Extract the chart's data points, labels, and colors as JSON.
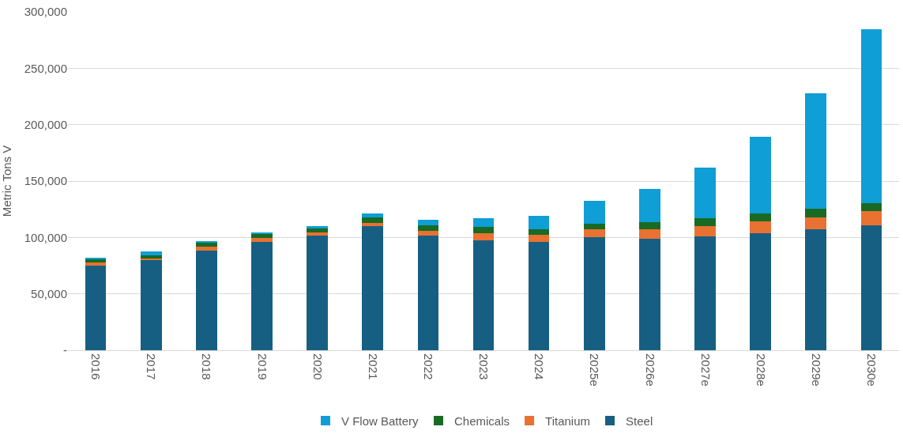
{
  "chart_data": {
    "type": "bar",
    "stacked": true,
    "ylabel": "Metric Tons V",
    "categories": [
      "2016",
      "2017",
      "2018",
      "2019",
      "2020",
      "2021",
      "2022",
      "2023",
      "2024",
      "2025e",
      "2026e",
      "2027e",
      "2028e",
      "2029e",
      "2030e"
    ],
    "series": [
      {
        "name": "Steel",
        "color": "#175f82",
        "values": [
          75000,
          80000,
          88000,
          96000,
          101500,
          110000,
          101500,
          97500,
          96000,
          100000,
          99000,
          101000,
          104000,
          107000,
          111000
        ]
      },
      {
        "name": "Titanium",
        "color": "#e97132",
        "values": [
          2500,
          1000,
          4000,
          3500,
          3000,
          3000,
          4500,
          6000,
          6000,
          7000,
          8000,
          9000,
          10000,
          11000,
          12500
        ]
      },
      {
        "name": "Chemicals",
        "color": "#196b24",
        "values": [
          2800,
          3000,
          3000,
          3500,
          3500,
          5000,
          5000,
          5500,
          5500,
          5500,
          6500,
          7000,
          7000,
          7500,
          7000
        ]
      },
      {
        "name": "V Flow Battery",
        "color": "#0f9ed5",
        "values": [
          1700,
          3500,
          2000,
          1500,
          2000,
          3000,
          5000,
          8000,
          12000,
          20000,
          29500,
          45000,
          68000,
          102000,
          154000
        ]
      }
    ],
    "ylim": [
      0,
      300000
    ],
    "yticks": [
      {
        "value": 0,
        "label": "-"
      },
      {
        "value": 50000,
        "label": "50,000"
      },
      {
        "value": 100000,
        "label": "100,000"
      },
      {
        "value": 150000,
        "label": "150,000"
      },
      {
        "value": 200000,
        "label": "200,000"
      },
      {
        "value": 250000,
        "label": "250,000"
      },
      {
        "value": 300000,
        "label": "300,000"
      }
    ],
    "grid": "y",
    "legend": "bottom"
  }
}
